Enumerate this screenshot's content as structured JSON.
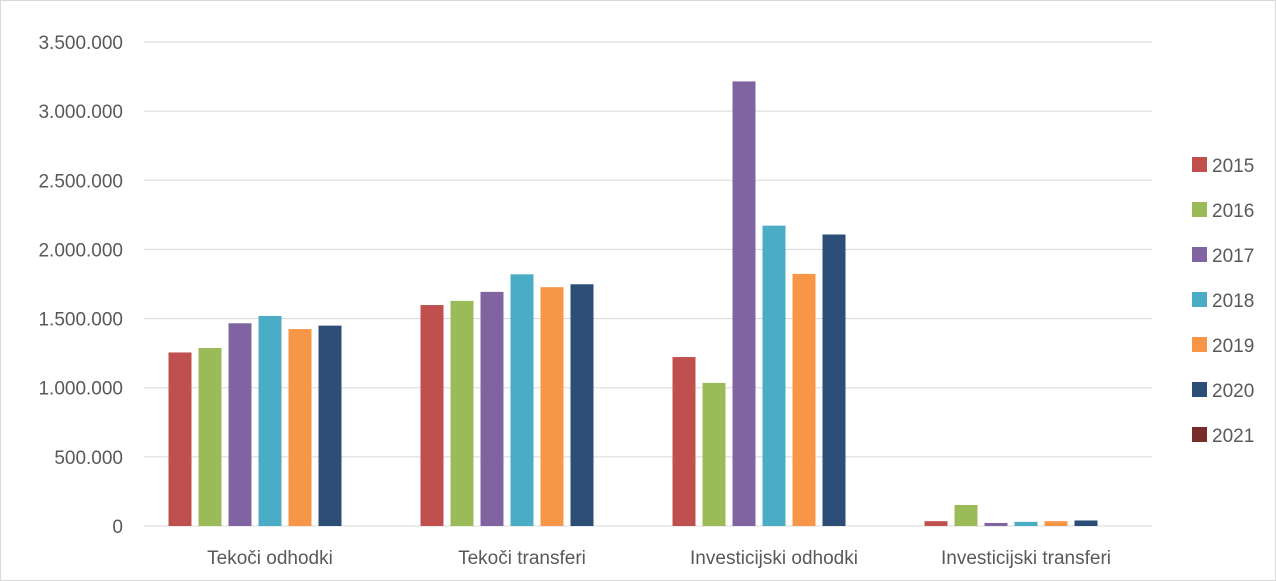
{
  "chart_data": {
    "type": "bar",
    "categories": [
      "Tekoči odhodki",
      "Tekoči transferi",
      "Investicijski odhodki",
      "Investicijski transferi"
    ],
    "series": [
      {
        "name": "2015",
        "color": "#c0504d",
        "values": [
          1255000,
          1598000,
          1222000,
          35000
        ]
      },
      {
        "name": "2016",
        "color": "#9bbb59",
        "values": [
          1287000,
          1628000,
          1035000,
          152000
        ]
      },
      {
        "name": "2017",
        "color": "#8064a2",
        "values": [
          1466000,
          1693000,
          3215000,
          22000
        ]
      },
      {
        "name": "2018",
        "color": "#4bacc6",
        "values": [
          1519000,
          1820000,
          2172000,
          30000
        ]
      },
      {
        "name": "2019",
        "color": "#f79646",
        "values": [
          1424000,
          1727000,
          1823000,
          35000
        ]
      },
      {
        "name": "2020",
        "color": "#2c4d75",
        "values": [
          1449000,
          1748000,
          2108000,
          40000
        ]
      },
      {
        "name": "2021",
        "color": "#772c2a",
        "values": [
          0,
          0,
          0,
          0
        ]
      }
    ],
    "y_ticks": [
      "0",
      "500.000",
      "1.000.000",
      "1.500.000",
      "2.000.000",
      "2.500.000",
      "3.000.000",
      "3.500.000"
    ],
    "ylim": [
      0,
      3500000
    ],
    "grid": true,
    "legend_position": "right",
    "title": "",
    "xlabel": "",
    "ylabel": ""
  }
}
